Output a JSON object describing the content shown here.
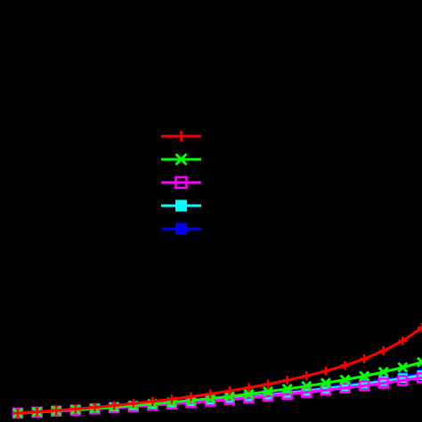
{
  "chart_data": {
    "type": "line",
    "title": "",
    "xlabel": "",
    "ylabel": "",
    "grid": false,
    "legend": {
      "placement": "center-left"
    },
    "x": [
      1,
      2,
      3,
      4,
      5,
      6,
      7,
      8,
      9,
      10,
      11,
      12,
      13,
      14,
      15,
      16,
      17,
      18,
      19,
      20,
      21,
      22
    ],
    "series": [
      {
        "color": "#ff0000",
        "marker": "plus",
        "values": [
          0.0,
          0.008,
          0.016,
          0.025,
          0.035,
          0.046,
          0.058,
          0.071,
          0.085,
          0.1,
          0.117,
          0.135,
          0.155,
          0.176,
          0.2,
          0.226,
          0.256,
          0.29,
          0.33,
          0.38,
          0.44,
          0.52
        ]
      },
      {
        "color": "#00ff00",
        "marker": "x",
        "values": [
          0.0,
          0.007,
          0.014,
          0.021,
          0.029,
          0.037,
          0.046,
          0.056,
          0.066,
          0.077,
          0.089,
          0.102,
          0.116,
          0.131,
          0.147,
          0.164,
          0.183,
          0.203,
          0.225,
          0.25,
          0.278,
          0.31
        ]
      },
      {
        "color": "#ff00ff",
        "marker": "square-open",
        "values": [
          0.0,
          0.006,
          0.012,
          0.018,
          0.025,
          0.032,
          0.039,
          0.047,
          0.055,
          0.064,
          0.073,
          0.083,
          0.093,
          0.104,
          0.115,
          0.127,
          0.14,
          0.153,
          0.167,
          0.182,
          0.198,
          0.215
        ]
      },
      {
        "color": "#00ffff",
        "marker": "square-filled",
        "values": [
          0.0,
          0.0065,
          0.013,
          0.0195,
          0.027,
          0.034,
          0.042,
          0.05,
          0.059,
          0.068,
          0.078,
          0.088,
          0.099,
          0.11,
          0.122,
          0.135,
          0.149,
          0.163,
          0.178,
          0.194,
          0.212,
          0.23
        ]
      },
      {
        "color": "#0000ff",
        "marker": "square-filled",
        "values": [
          0.0,
          0.0068,
          0.0136,
          0.0204,
          0.0282,
          0.0356,
          0.0438,
          0.0522,
          0.0614,
          0.0708,
          0.0812,
          0.0918,
          0.1032,
          0.1148,
          0.1274,
          0.141,
          0.1556,
          0.1702,
          0.186,
          0.2028,
          0.2216,
          0.242
        ]
      }
    ],
    "legend_entries": [
      {
        "color": "#ff0000",
        "marker": "plus"
      },
      {
        "color": "#00ff00",
        "marker": "x"
      },
      {
        "color": "#ff00ff",
        "marker": "square-open"
      },
      {
        "color": "#00ffff",
        "marker": "square-filled"
      },
      {
        "color": "#0000ff",
        "marker": "square-filled"
      }
    ]
  }
}
